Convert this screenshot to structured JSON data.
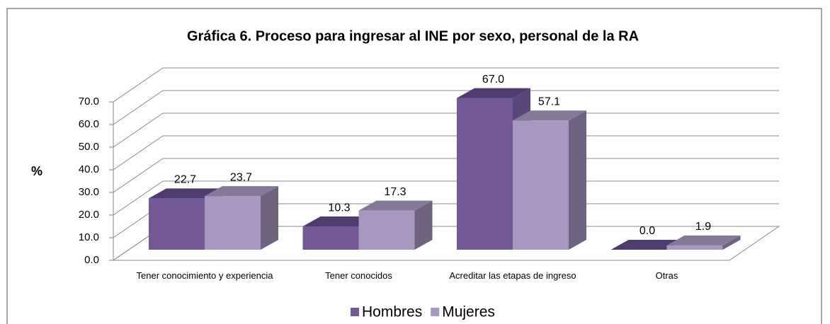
{
  "chart_data": {
    "type": "bar3d",
    "title": "Gráfica 6. Proceso para ingresar al INE por sexo, personal de la RA",
    "ylabel": "%",
    "categories": [
      "Tener conocimiento y experiencia",
      "Tener conocidos",
      "Acreditar las etapas de ingreso",
      "Otras"
    ],
    "series": [
      {
        "name": "Hombres",
        "color": "#735a96",
        "values": [
          22.7,
          10.3,
          67.0,
          0.0
        ],
        "value_labels": [
          "22.7",
          "10.3",
          "67.0",
          "0.0"
        ]
      },
      {
        "name": "Mujeres",
        "color": "#a898c0",
        "values": [
          23.7,
          17.3,
          57.1,
          1.9
        ],
        "value_labels": [
          "23.7",
          "17.3",
          "57.1",
          "1.9"
        ]
      }
    ],
    "ylim": [
      0,
      70
    ],
    "yticks": [
      {
        "value": 0,
        "label": "0.0"
      },
      {
        "value": 10,
        "label": "10.0"
      },
      {
        "value": 20,
        "label": "20.0"
      },
      {
        "value": 30,
        "label": "30.0"
      },
      {
        "value": 40,
        "label": "40.0"
      },
      {
        "value": 50,
        "label": "50.0"
      },
      {
        "value": 60,
        "label": "60.0"
      },
      {
        "value": 70,
        "label": "70.0"
      }
    ],
    "grid": true,
    "legend": "bottom"
  }
}
